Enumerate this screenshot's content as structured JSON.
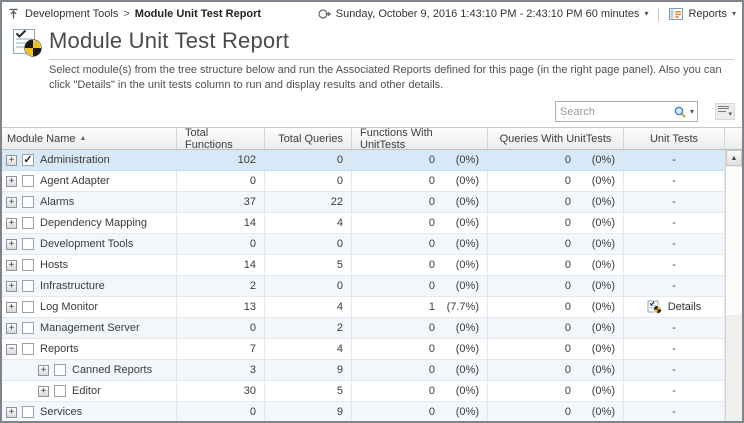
{
  "colors": {
    "selected_row": "#d7e8f7",
    "stripe_row": "#f3f7fb",
    "pie_yellow": "#f2c21c",
    "pie_black": "#1a1a1a",
    "header_text": "#3c3c3c"
  },
  "topbar": {
    "breadcrumb_parent": "Development Tools",
    "breadcrumb_separator": ">",
    "breadcrumb_current": "Module Unit Test Report",
    "time_range": "Sunday, October 9, 2016 1:43:10 PM - 2:43:10 PM 60 minutes",
    "reports_label": "Reports"
  },
  "header": {
    "title": "Module Unit Test Report",
    "description": "Select module(s) from the tree structure below and run the Associated Reports defined for this page (in the right page panel). Also you can click \"Details\" in the unit tests column to run and display results and other details."
  },
  "search": {
    "placeholder": "Search"
  },
  "table": {
    "columns": [
      "Module Name",
      "Total Functions",
      "Total Queries",
      "Functions With UnitTests",
      "Queries With UnitTests",
      "Unit Tests"
    ],
    "sorted_column": "Module Name",
    "sort_direction": "asc",
    "rows": [
      {
        "name": "Administration",
        "level": 0,
        "expand": "collapsed",
        "checked": true,
        "selected": true,
        "total_functions": 102,
        "total_queries": 0,
        "functions_with_unittests": {
          "count": 0,
          "pct": "(0%)"
        },
        "queries_with_unittests": {
          "count": 0,
          "pct": "(0%)"
        },
        "unit_tests": "-"
      },
      {
        "name": "Agent Adapter",
        "level": 0,
        "expand": "collapsed",
        "checked": false,
        "selected": false,
        "total_functions": 0,
        "total_queries": 0,
        "functions_with_unittests": {
          "count": 0,
          "pct": "(0%)"
        },
        "queries_with_unittests": {
          "count": 0,
          "pct": "(0%)"
        },
        "unit_tests": "-"
      },
      {
        "name": "Alarms",
        "level": 0,
        "expand": "collapsed",
        "checked": false,
        "selected": false,
        "total_functions": 37,
        "total_queries": 22,
        "functions_with_unittests": {
          "count": 0,
          "pct": "(0%)"
        },
        "queries_with_unittests": {
          "count": 0,
          "pct": "(0%)"
        },
        "unit_tests": "-"
      },
      {
        "name": "Dependency Mapping",
        "level": 0,
        "expand": "collapsed",
        "checked": false,
        "selected": false,
        "total_functions": 14,
        "total_queries": 4,
        "functions_with_unittests": {
          "count": 0,
          "pct": "(0%)"
        },
        "queries_with_unittests": {
          "count": 0,
          "pct": "(0%)"
        },
        "unit_tests": "-"
      },
      {
        "name": "Development Tools",
        "level": 0,
        "expand": "collapsed",
        "checked": false,
        "selected": false,
        "total_functions": 0,
        "total_queries": 0,
        "functions_with_unittests": {
          "count": 0,
          "pct": "(0%)"
        },
        "queries_with_unittests": {
          "count": 0,
          "pct": "(0%)"
        },
        "unit_tests": "-"
      },
      {
        "name": "Hosts",
        "level": 0,
        "expand": "collapsed",
        "checked": false,
        "selected": false,
        "total_functions": 14,
        "total_queries": 5,
        "functions_with_unittests": {
          "count": 0,
          "pct": "(0%)"
        },
        "queries_with_unittests": {
          "count": 0,
          "pct": "(0%)"
        },
        "unit_tests": "-"
      },
      {
        "name": "Infrastructure",
        "level": 0,
        "expand": "collapsed",
        "checked": false,
        "selected": false,
        "total_functions": 2,
        "total_queries": 0,
        "functions_with_unittests": {
          "count": 0,
          "pct": "(0%)"
        },
        "queries_with_unittests": {
          "count": 0,
          "pct": "(0%)"
        },
        "unit_tests": "-"
      },
      {
        "name": "Log Monitor",
        "level": 0,
        "expand": "collapsed",
        "checked": false,
        "selected": false,
        "total_functions": 13,
        "total_queries": 4,
        "functions_with_unittests": {
          "count": 1,
          "pct": "(7.7%)"
        },
        "queries_with_unittests": {
          "count": 0,
          "pct": "(0%)"
        },
        "unit_tests": "Details",
        "unit_tests_icon": true
      },
      {
        "name": "Management Server",
        "level": 0,
        "expand": "collapsed",
        "checked": false,
        "selected": false,
        "total_functions": 0,
        "total_queries": 2,
        "functions_with_unittests": {
          "count": 0,
          "pct": "(0%)"
        },
        "queries_with_unittests": {
          "count": 0,
          "pct": "(0%)"
        },
        "unit_tests": "-"
      },
      {
        "name": "Reports",
        "level": 0,
        "expand": "expanded",
        "checked": false,
        "selected": false,
        "total_functions": 7,
        "total_queries": 4,
        "functions_with_unittests": {
          "count": 0,
          "pct": "(0%)"
        },
        "queries_with_unittests": {
          "count": 0,
          "pct": "(0%)"
        },
        "unit_tests": "-"
      },
      {
        "name": "Canned Reports",
        "level": 1,
        "expand": "collapsed",
        "checked": false,
        "selected": false,
        "total_functions": 3,
        "total_queries": 9,
        "functions_with_unittests": {
          "count": 0,
          "pct": "(0%)"
        },
        "queries_with_unittests": {
          "count": 0,
          "pct": "(0%)"
        },
        "unit_tests": "-"
      },
      {
        "name": "Editor",
        "level": 1,
        "expand": "collapsed",
        "checked": false,
        "selected": false,
        "total_functions": 30,
        "total_queries": 5,
        "functions_with_unittests": {
          "count": 0,
          "pct": "(0%)"
        },
        "queries_with_unittests": {
          "count": 0,
          "pct": "(0%)"
        },
        "unit_tests": "-"
      },
      {
        "name": "Services",
        "level": 0,
        "expand": "collapsed",
        "checked": false,
        "selected": false,
        "total_functions": 0,
        "total_queries": 9,
        "functions_with_unittests": {
          "count": 0,
          "pct": "(0%)"
        },
        "queries_with_unittests": {
          "count": 0,
          "pct": "(0%)"
        },
        "unit_tests": "-"
      }
    ]
  }
}
